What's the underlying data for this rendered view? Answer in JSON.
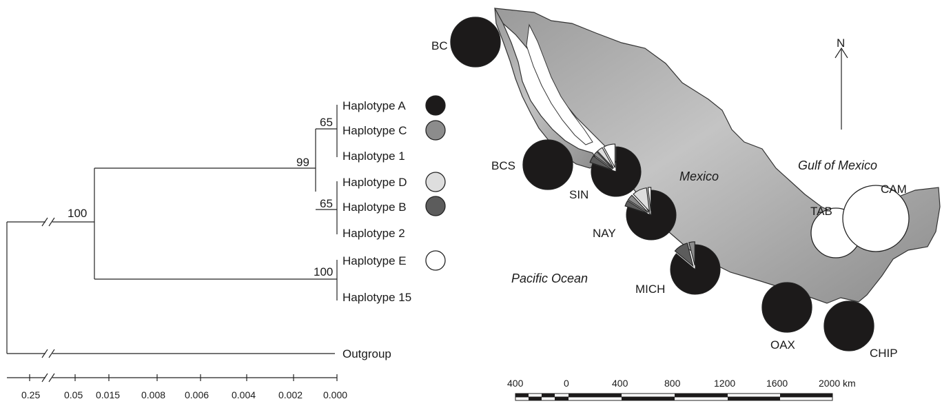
{
  "tree": {
    "nodes": {
      "root": "100",
      "upper": "99",
      "ac1": "65",
      "db2": "65",
      "e15": "100"
    },
    "tips": [
      {
        "label": "Haplotype A",
        "color": "#1c1a1a"
      },
      {
        "label": "Haplotype C",
        "color": "#8c8c8c"
      },
      {
        "label": "Haplotype 1",
        "color": ""
      },
      {
        "label": "Haplotype D",
        "color": "#dedede"
      },
      {
        "label": "Haplotype B",
        "color": "#5c5c5c"
      },
      {
        "label": "Haplotype 2",
        "color": ""
      },
      {
        "label": "Haplotype E",
        "color": "#ffffff"
      },
      {
        "label": "Haplotype 15",
        "color": ""
      },
      {
        "label": "Outgroup",
        "color": ""
      }
    ],
    "axis_ticks": [
      "0.25",
      "0.05",
      "0.015",
      "0.008",
      "0.006",
      "0.004",
      "0.002",
      "0.000"
    ]
  },
  "map": {
    "country_label": "Mexico",
    "pacific_label": "Pacific Ocean",
    "gulf_label": "Gulf of Mexico",
    "north_label": "N",
    "scale_ticks": [
      "400",
      "0",
      "400",
      "800",
      "1200",
      "1600",
      "2000 km"
    ],
    "sites": [
      {
        "code": "BC",
        "A": 1.0
      },
      {
        "code": "BCS",
        "A": 1.0
      },
      {
        "code": "SIN",
        "A": 0.8,
        "B": 0.05,
        "C": 0.03,
        "D": 0.04,
        "E": 0.08
      },
      {
        "code": "NAY",
        "A": 0.8,
        "B": 0.04,
        "C": 0.04,
        "D": 0.1,
        "E": 0.02
      },
      {
        "code": "MICH",
        "A": 0.86,
        "B": 0.1,
        "C": 0.04
      },
      {
        "code": "OAX",
        "A": 1.0
      },
      {
        "code": "CHIP",
        "A": 1.0
      },
      {
        "code": "TAB",
        "E": 1.0
      },
      {
        "code": "CAM",
        "E": 1.0
      }
    ],
    "colors": {
      "A": "#1c1a1a",
      "B": "#5c5c5c",
      "C": "#8c8c8c",
      "D": "#dedede",
      "E": "#ffffff"
    }
  }
}
